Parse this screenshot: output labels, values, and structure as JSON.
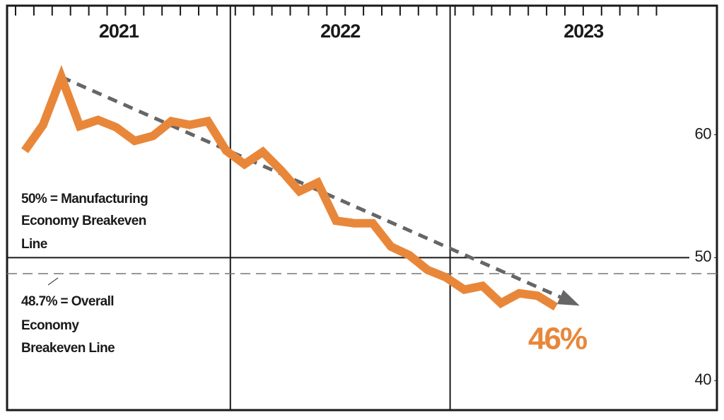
{
  "chart_data": {
    "type": "line",
    "x_groups": [
      "2021",
      "2022",
      "2023"
    ],
    "categories": [
      null,
      null,
      null,
      null,
      null,
      null,
      null,
      null,
      null,
      null,
      null,
      null,
      null,
      null,
      null,
      null,
      null,
      null,
      null,
      null,
      null,
      null,
      null,
      null,
      null,
      null,
      null,
      null,
      null,
      null
    ],
    "series": [
      {
        "color": "#e8873a",
        "values": [
          58.7,
          60.8,
          64.7,
          60.7,
          61.2,
          60.6,
          59.5,
          59.9,
          61.1,
          60.8,
          61.1,
          58.7,
          57.6,
          58.6,
          57.1,
          55.4,
          56.1,
          53.0,
          52.8,
          52.8,
          50.9,
          50.2,
          49.0,
          48.4,
          47.4,
          47.7,
          46.3,
          47.1,
          46.9,
          46.0
        ],
        "value_labels": [
          null,
          null,
          null,
          null,
          null,
          null,
          null,
          null,
          null,
          null,
          null,
          null,
          null,
          null,
          null,
          null,
          null,
          null,
          null,
          null,
          null,
          null,
          null,
          null,
          null,
          null,
          null,
          null,
          null,
          "46%"
        ]
      }
    ],
    "ylim": [
      37.6,
      70.5
    ],
    "yticks": [
      40,
      50,
      60
    ],
    "reference_lines": [
      {
        "value": 50,
        "style": "solid",
        "label": [
          "50% = Manufacturing",
          "Economy Breakeven",
          "Line"
        ]
      },
      {
        "value": 48.7,
        "style": "dashed",
        "label": [
          "48.7% = Overall",
          "Economy",
          "Breakeven Line"
        ]
      }
    ],
    "trend_line": {
      "color": "#666666",
      "from_index": 2,
      "from_value": 64.7,
      "to_index": 30.3,
      "to_value": 46.1
    }
  }
}
